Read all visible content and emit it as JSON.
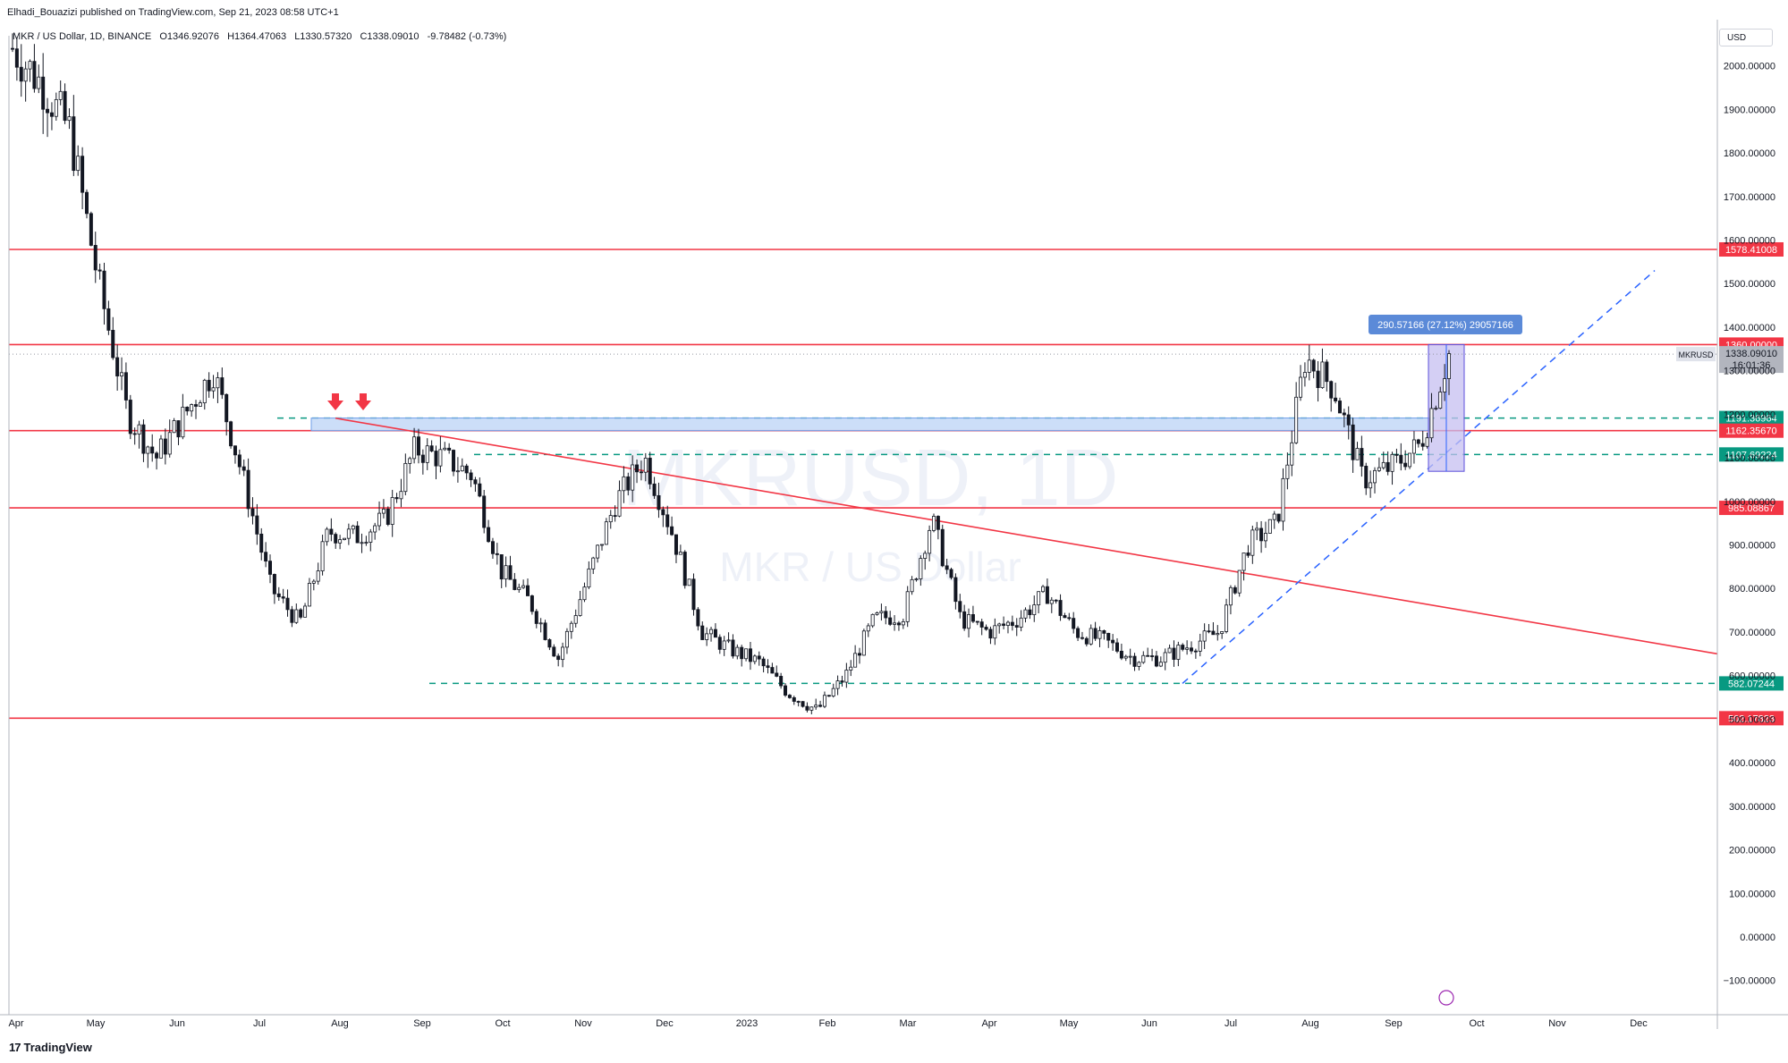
{
  "header": {
    "published": "Elhadi_Bouazizi published on TradingView.com, Sep 21, 2023 08:58 UTC+1",
    "symbol_desc": "MKR / US Dollar, 1D, BINANCE",
    "open": "O1346.92076",
    "high": "H1364.47063",
    "low": "L1330.57320",
    "close": "C1338.09010",
    "change": "-9.78482 (-0.73%)"
  },
  "currency_button": "USD",
  "watermark": {
    "symbol": "MKRUSD, 1D",
    "name": "MKR / US Dollar"
  },
  "footer": {
    "brand": "TradingView"
  },
  "measure_label": "290.57166 (27.12%) 29057166",
  "price_tag": {
    "symbol": "MKRUSD",
    "price": "1338.09010",
    "countdown": "16:01:36"
  },
  "colors": {
    "red_line": "#f23645",
    "teal_line": "#089981",
    "blue_trend": "#2962ff",
    "zone_fill": "#bbd3f5",
    "measure_fill": "#c5bff0"
  },
  "chart_data": {
    "type": "candlestick",
    "symbol": "MKRUSD",
    "timeframe": "1D",
    "exchange": "BINANCE",
    "ylim": [
      -130,
      2090
    ],
    "x_tick_labels": [
      "Apr",
      "May",
      "Jun",
      "Jul",
      "Aug",
      "Sep",
      "Oct",
      "Nov",
      "Dec",
      "2023",
      "Feb",
      "Mar",
      "Apr",
      "May",
      "Jun",
      "Jul",
      "Aug",
      "Sep",
      "Oct",
      "Nov",
      "Dec"
    ],
    "y_tick_labels": [
      "2000.00000",
      "1900.00000",
      "1800.00000",
      "1700.00000",
      "1600.00000",
      "1500.00000",
      "1400.00000",
      "1300.00000",
      "1200.00000",
      "1100.00000",
      "1000.00000",
      "900.00000",
      "800.00000",
      "700.00000",
      "600.00000",
      "500.00000",
      "400.00000",
      "300.00000",
      "200.00000",
      "100.00000",
      "0.00000",
      "−100.00000"
    ],
    "horizontal_levels": [
      {
        "value": 1578.41008,
        "label": "1578.41008",
        "style": "solid-red"
      },
      {
        "value": 1360.0,
        "label": "1360.00000",
        "style": "solid-red"
      },
      {
        "value": 1191.36964,
        "label": "1191.36964",
        "style": "dashed-teal"
      },
      {
        "value": 1162.3567,
        "label": "1162.35670",
        "style": "solid-red"
      },
      {
        "value": 1107.69224,
        "label": "1107.69224",
        "style": "dashed-teal"
      },
      {
        "value": 985.08867,
        "label": "985.08867",
        "style": "solid-red"
      },
      {
        "value": 582.07244,
        "label": "582.07244",
        "style": "dashed-teal"
      },
      {
        "value": 502.17823,
        "label": "502.17823",
        "style": "solid-red"
      }
    ],
    "close_series": [
      [
        "Apr",
        2040
      ],
      [
        "Apr",
        1960
      ],
      [
        "Apr",
        1850
      ],
      [
        "May",
        1500
      ],
      [
        "May",
        1200
      ],
      [
        "May",
        1100
      ],
      [
        "May",
        1200
      ],
      [
        "Jun",
        1300
      ],
      [
        "Jun",
        1060
      ],
      [
        "Jun",
        800
      ],
      [
        "Jun",
        720
      ],
      [
        "Jul",
        930
      ],
      [
        "Jul",
        920
      ],
      [
        "Jul",
        960
      ],
      [
        "Aug",
        1120
      ],
      [
        "Aug",
        1100
      ],
      [
        "Aug",
        1060
      ],
      [
        "Sep",
        840
      ],
      [
        "Sep",
        770
      ],
      [
        "Sep",
        640
      ],
      [
        "Oct",
        820
      ],
      [
        "Oct",
        1000
      ],
      [
        "Oct",
        1100
      ],
      [
        "Nov",
        920
      ],
      [
        "Nov",
        700
      ],
      [
        "Nov",
        660
      ],
      [
        "Dec",
        630
      ],
      [
        "Dec",
        560
      ],
      [
        "2023",
        520
      ],
      [
        "2023",
        600
      ],
      [
        "Feb",
        730
      ],
      [
        "Feb",
        740
      ],
      [
        "Mar",
        960
      ],
      [
        "Mar",
        730
      ],
      [
        "Mar",
        700
      ],
      [
        "Apr",
        730
      ],
      [
        "Apr",
        790
      ],
      [
        "Apr",
        700
      ],
      [
        "May",
        680
      ],
      [
        "May",
        640
      ],
      [
        "Jun",
        640
      ],
      [
        "Jun",
        670
      ],
      [
        "Jun",
        700
      ],
      [
        "Jul",
        900
      ],
      [
        "Jul",
        950
      ],
      [
        "Aug",
        1330
      ],
      [
        "Aug",
        1260
      ],
      [
        "Aug",
        1050
      ],
      [
        "Sep",
        1080
      ],
      [
        "Sep",
        1130
      ],
      [
        "Sep",
        1338
      ]
    ]
  }
}
